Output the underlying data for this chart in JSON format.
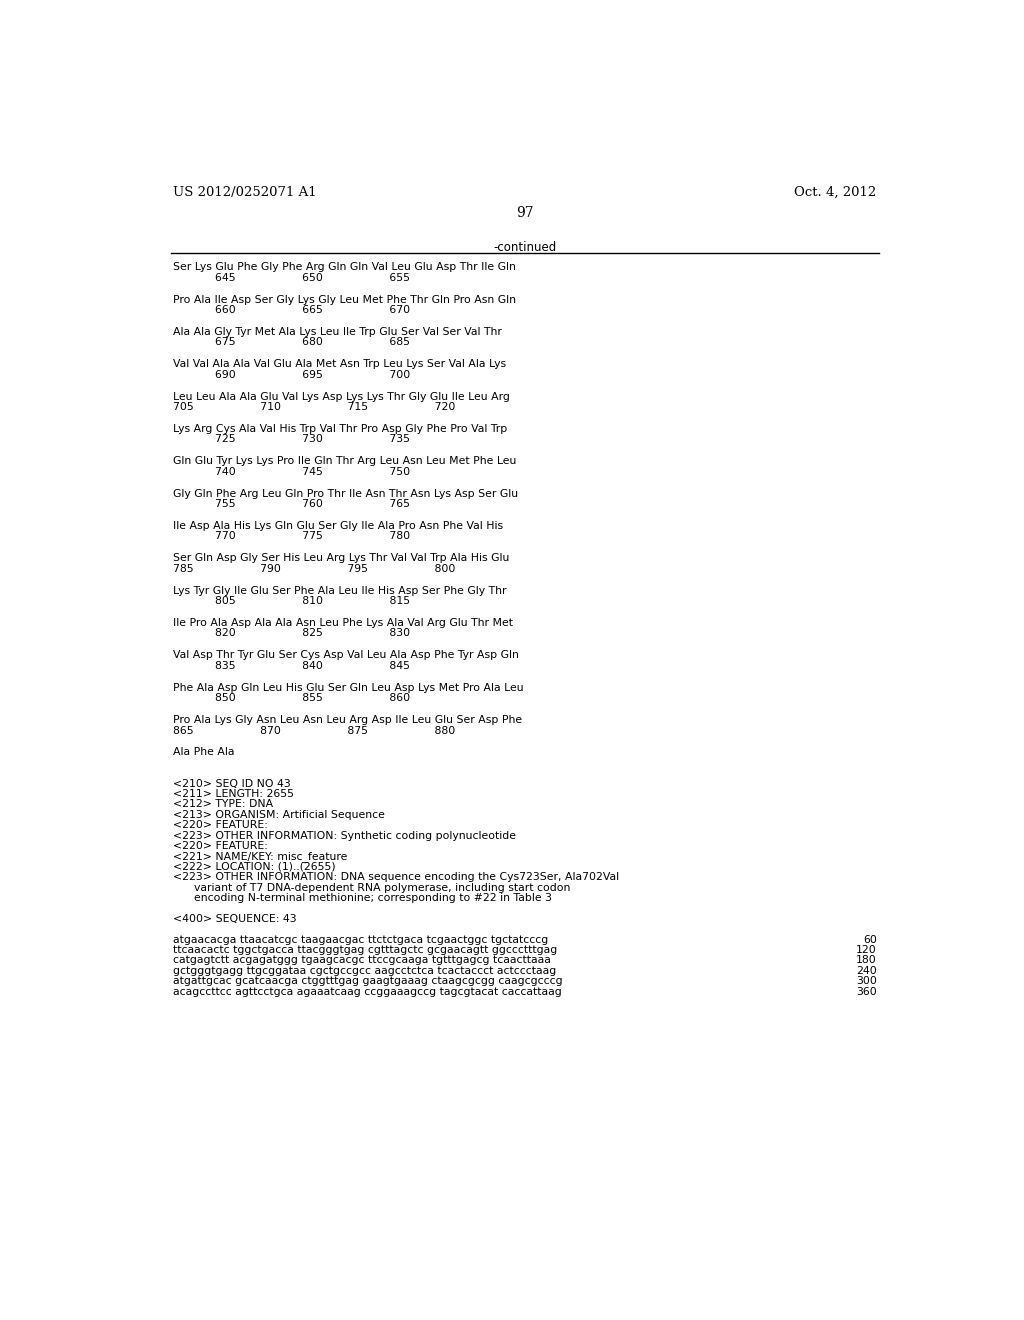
{
  "header_left": "US 2012/0252071 A1",
  "header_right": "Oct. 4, 2012",
  "page_number": "97",
  "continued_label": "-continued",
  "background_color": "#ffffff",
  "text_color": "#000000",
  "content_lines": [
    {
      "type": "seq_aa",
      "aa": "Ser Lys Glu Phe Gly Phe Arg Gln Gln Val Leu Glu Asp Thr Ile Gln",
      "nums": "            645                   650                   655"
    },
    {
      "type": "seq_aa",
      "aa": "Pro Ala Ile Asp Ser Gly Lys Gly Leu Met Phe Thr Gln Pro Asn Gln",
      "nums": "            660                   665                   670"
    },
    {
      "type": "seq_aa",
      "aa": "Ala Ala Gly Tyr Met Ala Lys Leu Ile Trp Glu Ser Val Ser Val Thr",
      "nums": "            675                   680                   685"
    },
    {
      "type": "seq_aa",
      "aa": "Val Val Ala Ala Val Glu Ala Met Asn Trp Leu Lys Ser Val Ala Lys",
      "nums": "            690                   695                   700"
    },
    {
      "type": "seq_aa",
      "aa": "Leu Leu Ala Ala Glu Val Lys Asp Lys Lys Thr Gly Glu Ile Leu Arg",
      "nums": "705                   710                   715                   720"
    },
    {
      "type": "seq_aa",
      "aa": "Lys Arg Cys Ala Val His Trp Val Thr Pro Asp Gly Phe Pro Val Trp",
      "nums": "            725                   730                   735"
    },
    {
      "type": "seq_aa",
      "aa": "Gln Glu Tyr Lys Lys Pro Ile Gln Thr Arg Leu Asn Leu Met Phe Leu",
      "nums": "            740                   745                   750"
    },
    {
      "type": "seq_aa",
      "aa": "Gly Gln Phe Arg Leu Gln Pro Thr Ile Asn Thr Asn Lys Asp Ser Glu",
      "nums": "            755                   760                   765"
    },
    {
      "type": "seq_aa",
      "aa": "Ile Asp Ala His Lys Gln Glu Ser Gly Ile Ala Pro Asn Phe Val His",
      "nums": "            770                   775                   780"
    },
    {
      "type": "seq_aa",
      "aa": "Ser Gln Asp Gly Ser His Leu Arg Lys Thr Val Val Trp Ala His Glu",
      "nums": "785                   790                   795                   800"
    },
    {
      "type": "seq_aa",
      "aa": "Lys Tyr Gly Ile Glu Ser Phe Ala Leu Ile His Asp Ser Phe Gly Thr",
      "nums": "            805                   810                   815"
    },
    {
      "type": "seq_aa",
      "aa": "Ile Pro Ala Asp Ala Ala Asn Leu Phe Lys Ala Val Arg Glu Thr Met",
      "nums": "            820                   825                   830"
    },
    {
      "type": "seq_aa",
      "aa": "Val Asp Thr Tyr Glu Ser Cys Asp Val Leu Ala Asp Phe Tyr Asp Gln",
      "nums": "            835                   840                   845"
    },
    {
      "type": "seq_aa",
      "aa": "Phe Ala Asp Gln Leu His Glu Ser Gln Leu Asp Lys Met Pro Ala Leu",
      "nums": "            850                   855                   860"
    },
    {
      "type": "seq_aa",
      "aa": "Pro Ala Lys Gly Asn Leu Asn Leu Arg Asp Ile Leu Glu Ser Asp Phe",
      "nums": "865                   870                   875                   880"
    },
    {
      "type": "seq_aa_last",
      "aa": "Ala Phe Ala",
      "nums": ""
    },
    {
      "type": "blank2"
    },
    {
      "type": "meta",
      "text": "<210> SEQ ID NO 43"
    },
    {
      "type": "meta",
      "text": "<211> LENGTH: 2655"
    },
    {
      "type": "meta",
      "text": "<212> TYPE: DNA"
    },
    {
      "type": "meta",
      "text": "<213> ORGANISM: Artificial Sequence"
    },
    {
      "type": "meta",
      "text": "<220> FEATURE:"
    },
    {
      "type": "meta",
      "text": "<223> OTHER INFORMATION: Synthetic coding polynucleotide"
    },
    {
      "type": "meta",
      "text": "<220> FEATURE:"
    },
    {
      "type": "meta",
      "text": "<221> NAME/KEY: misc_feature"
    },
    {
      "type": "meta",
      "text": "<222> LOCATION: (1)..(2655)"
    },
    {
      "type": "meta",
      "text": "<223> OTHER INFORMATION: DNA sequence encoding the Cys723Ser, Ala702Val"
    },
    {
      "type": "meta",
      "text": "      variant of T7 DNA-dependent RNA polymerase, including start codon"
    },
    {
      "type": "meta",
      "text": "      encoding N-terminal methionine; corresponding to #22 in Table 3"
    },
    {
      "type": "blank1"
    },
    {
      "type": "meta",
      "text": "<400> SEQUENCE: 43"
    },
    {
      "type": "blank1"
    },
    {
      "type": "seq_dna",
      "text": "atgaacacga ttaacatcgc taagaacgac ttctctgaca tcgaactggc tgctatcccg",
      "num": "60"
    },
    {
      "type": "seq_dna",
      "text": "ttcaacactc tggctgacca ttacgggtgag cgtttagctc gcgaacagtt ggccctttgag",
      "num": "120"
    },
    {
      "type": "seq_dna",
      "text": "catgagtctt acgagatggg tgaagcacgc ttccgcaaga tgtttgagcg tcaacttaaa",
      "num": "180"
    },
    {
      "type": "seq_dna",
      "text": "gctgggtgagg ttgcggataa cgctgccgcc aagcctctca tcactaccct actccctaag",
      "num": "240"
    },
    {
      "type": "seq_dna",
      "text": "atgattgcac gcatcaacga ctggtttgag gaagtgaaag ctaagcgcgg caagcgcccg",
      "num": "300"
    },
    {
      "type": "seq_dna",
      "text": "acagccttcc agttcctgca agaaatcaag ccggaaagccg tagcgtacat caccattaag",
      "num": "360"
    }
  ]
}
